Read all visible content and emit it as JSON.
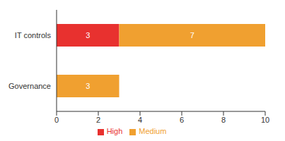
{
  "chart_data": {
    "type": "bar",
    "orientation": "horizontal",
    "stacked": true,
    "data_labels": true,
    "categories": [
      "IT controls",
      "Governance"
    ],
    "series": [
      {
        "name": "High",
        "color": "#e8312f",
        "values": [
          3,
          null
        ]
      },
      {
        "name": "Medium",
        "color": "#f0a030",
        "values": [
          7,
          3
        ]
      }
    ],
    "xlim": [
      0,
      10
    ],
    "xticks": [
      0,
      2,
      4,
      6,
      8,
      10
    ],
    "grid": false,
    "legend": "bottom"
  }
}
